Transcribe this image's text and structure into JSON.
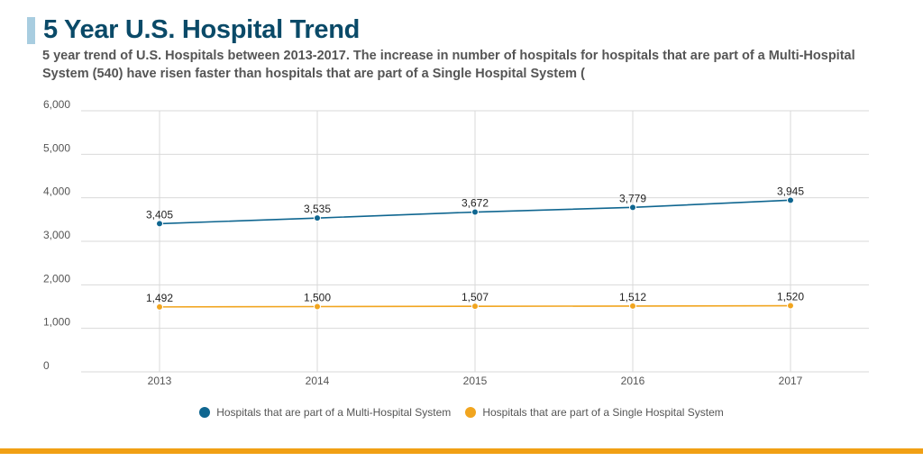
{
  "header": {
    "title": "5 Year U.S. Hospital Trend",
    "subtitle": "5 year trend of U.S. Hospitals between 2013-2017. The increase in number of hospitals for hospitals that are part of a Multi-Hospital System (540) have risen faster than hospitals that are part of a Single Hospital System ("
  },
  "colors": {
    "title": "#0a4a68",
    "accent_bar": "#a8cde0",
    "grid": "#d9d9d9",
    "axis_text": "#555555",
    "bottom_rule": "#f1a014"
  },
  "chart_data": {
    "type": "line",
    "categories": [
      "2013",
      "2014",
      "2015",
      "2016",
      "2017"
    ],
    "ylim": [
      0,
      6000
    ],
    "yticks": [
      0,
      1000,
      2000,
      3000,
      4000,
      5000,
      6000
    ],
    "ytick_labels": [
      "0",
      "1,000",
      "2,000",
      "3,000",
      "4,000",
      "5,000",
      "6,000"
    ],
    "grid": true,
    "legend_position": "bottom",
    "series": [
      {
        "name": "Hospitals that are part of a Multi-Hospital System",
        "color": "#0f6690",
        "values": [
          3405,
          3535,
          3672,
          3779,
          3945
        ],
        "labels": [
          "3,405",
          "3,535",
          "3,672",
          "3,779",
          "3,945"
        ]
      },
      {
        "name": "Hospitals that are part of a Single Hospital System",
        "color": "#f1a51f",
        "values": [
          1492,
          1500,
          1507,
          1512,
          1520
        ],
        "labels": [
          "1,492",
          "1,500",
          "1,507",
          "1,512",
          "1,520"
        ]
      }
    ]
  }
}
